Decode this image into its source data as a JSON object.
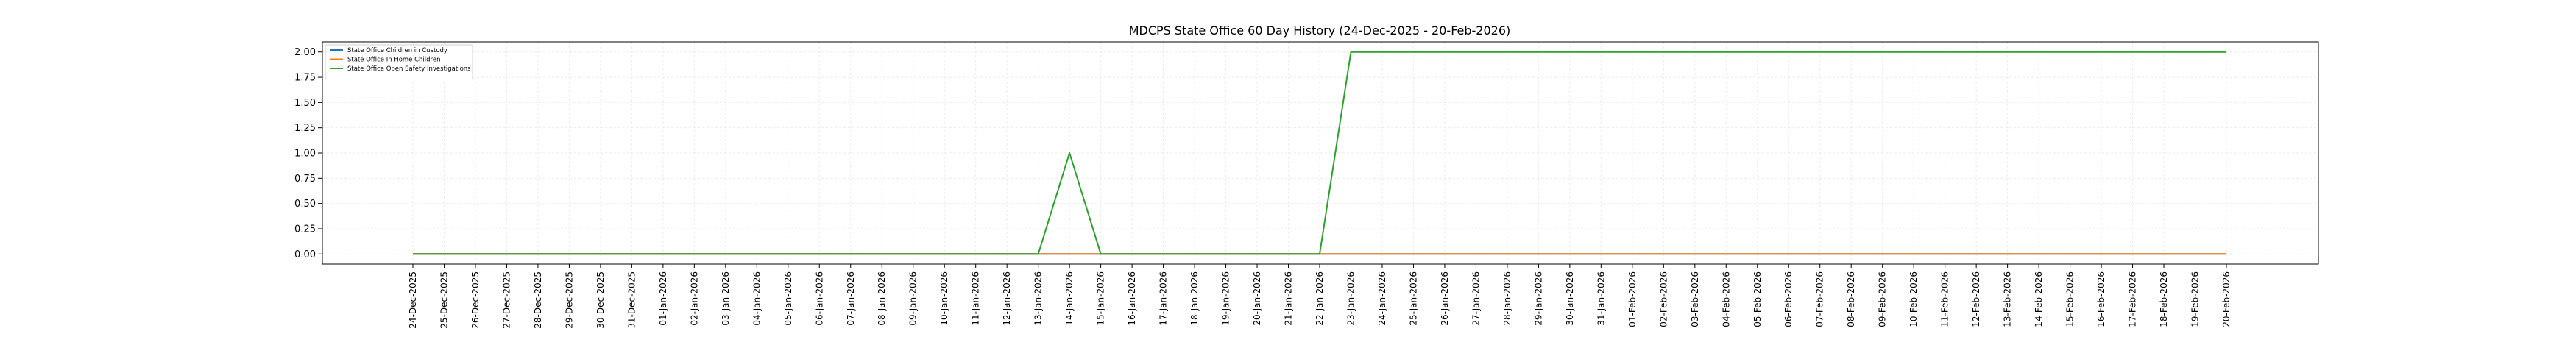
{
  "chart_data": {
    "type": "line",
    "title": "MDCPS State Office 60 Day History (24-Dec-2025 - 20-Feb-2026)",
    "xlabel": "",
    "ylabel": "",
    "ylim": [
      -0.1,
      2.1
    ],
    "y_ticks": [
      "0.00",
      "0.25",
      "0.50",
      "0.75",
      "1.00",
      "1.25",
      "1.50",
      "1.75",
      "2.00"
    ],
    "grid": true,
    "legend_position": "top-left",
    "x": [
      "24-Dec-2025",
      "25-Dec-2025",
      "26-Dec-2025",
      "27-Dec-2025",
      "28-Dec-2025",
      "29-Dec-2025",
      "30-Dec-2025",
      "31-Dec-2025",
      "01-Jan-2026",
      "02-Jan-2026",
      "03-Jan-2026",
      "04-Jan-2026",
      "05-Jan-2026",
      "06-Jan-2026",
      "07-Jan-2026",
      "08-Jan-2026",
      "09-Jan-2026",
      "10-Jan-2026",
      "11-Jan-2026",
      "12-Jan-2026",
      "13-Jan-2026",
      "14-Jan-2026",
      "15-Jan-2026",
      "16-Jan-2026",
      "17-Jan-2026",
      "18-Jan-2026",
      "19-Jan-2026",
      "20-Jan-2026",
      "21-Jan-2026",
      "22-Jan-2026",
      "23-Jan-2026",
      "24-Jan-2026",
      "25-Jan-2026",
      "26-Jan-2026",
      "27-Jan-2026",
      "28-Jan-2026",
      "29-Jan-2026",
      "30-Jan-2026",
      "31-Jan-2026",
      "01-Feb-2026",
      "02-Feb-2026",
      "03-Feb-2026",
      "04-Feb-2026",
      "05-Feb-2026",
      "06-Feb-2026",
      "07-Feb-2026",
      "08-Feb-2026",
      "09-Feb-2026",
      "10-Feb-2026",
      "11-Feb-2026",
      "12-Feb-2026",
      "13-Feb-2026",
      "14-Feb-2026",
      "15-Feb-2026",
      "16-Feb-2026",
      "17-Feb-2026",
      "18-Feb-2026",
      "19-Feb-2026",
      "20-Feb-2026"
    ],
    "series": [
      {
        "name": "State Office Children in Custody",
        "color": "#1f77b4",
        "values": [
          0,
          0,
          0,
          0,
          0,
          0,
          0,
          0,
          0,
          0,
          0,
          0,
          0,
          0,
          0,
          0,
          0,
          0,
          0,
          0,
          0,
          0,
          0,
          0,
          0,
          0,
          0,
          0,
          0,
          0,
          0,
          0,
          0,
          0,
          0,
          0,
          0,
          0,
          0,
          0,
          0,
          0,
          0,
          0,
          0,
          0,
          0,
          0,
          0,
          0,
          0,
          0,
          0,
          0,
          0,
          0,
          0,
          0,
          0
        ]
      },
      {
        "name": "State Office In Home Children",
        "color": "#ff7f0e",
        "values": [
          0,
          0,
          0,
          0,
          0,
          0,
          0,
          0,
          0,
          0,
          0,
          0,
          0,
          0,
          0,
          0,
          0,
          0,
          0,
          0,
          0,
          0,
          0,
          0,
          0,
          0,
          0,
          0,
          0,
          0,
          0,
          0,
          0,
          0,
          0,
          0,
          0,
          0,
          0,
          0,
          0,
          0,
          0,
          0,
          0,
          0,
          0,
          0,
          0,
          0,
          0,
          0,
          0,
          0,
          0,
          0,
          0,
          0,
          0
        ]
      },
      {
        "name": "State Office Open Safety Investigations",
        "color": "#2ca02c",
        "values": [
          0,
          0,
          0,
          0,
          0,
          0,
          0,
          0,
          0,
          0,
          0,
          0,
          0,
          0,
          0,
          0,
          0,
          0,
          0,
          0,
          0,
          1,
          0,
          0,
          0,
          0,
          0,
          0,
          0,
          0,
          2,
          2,
          2,
          2,
          2,
          2,
          2,
          2,
          2,
          2,
          2,
          2,
          2,
          2,
          2,
          2,
          2,
          2,
          2,
          2,
          2,
          2,
          2,
          2,
          2,
          2,
          2,
          2,
          2
        ]
      }
    ]
  }
}
